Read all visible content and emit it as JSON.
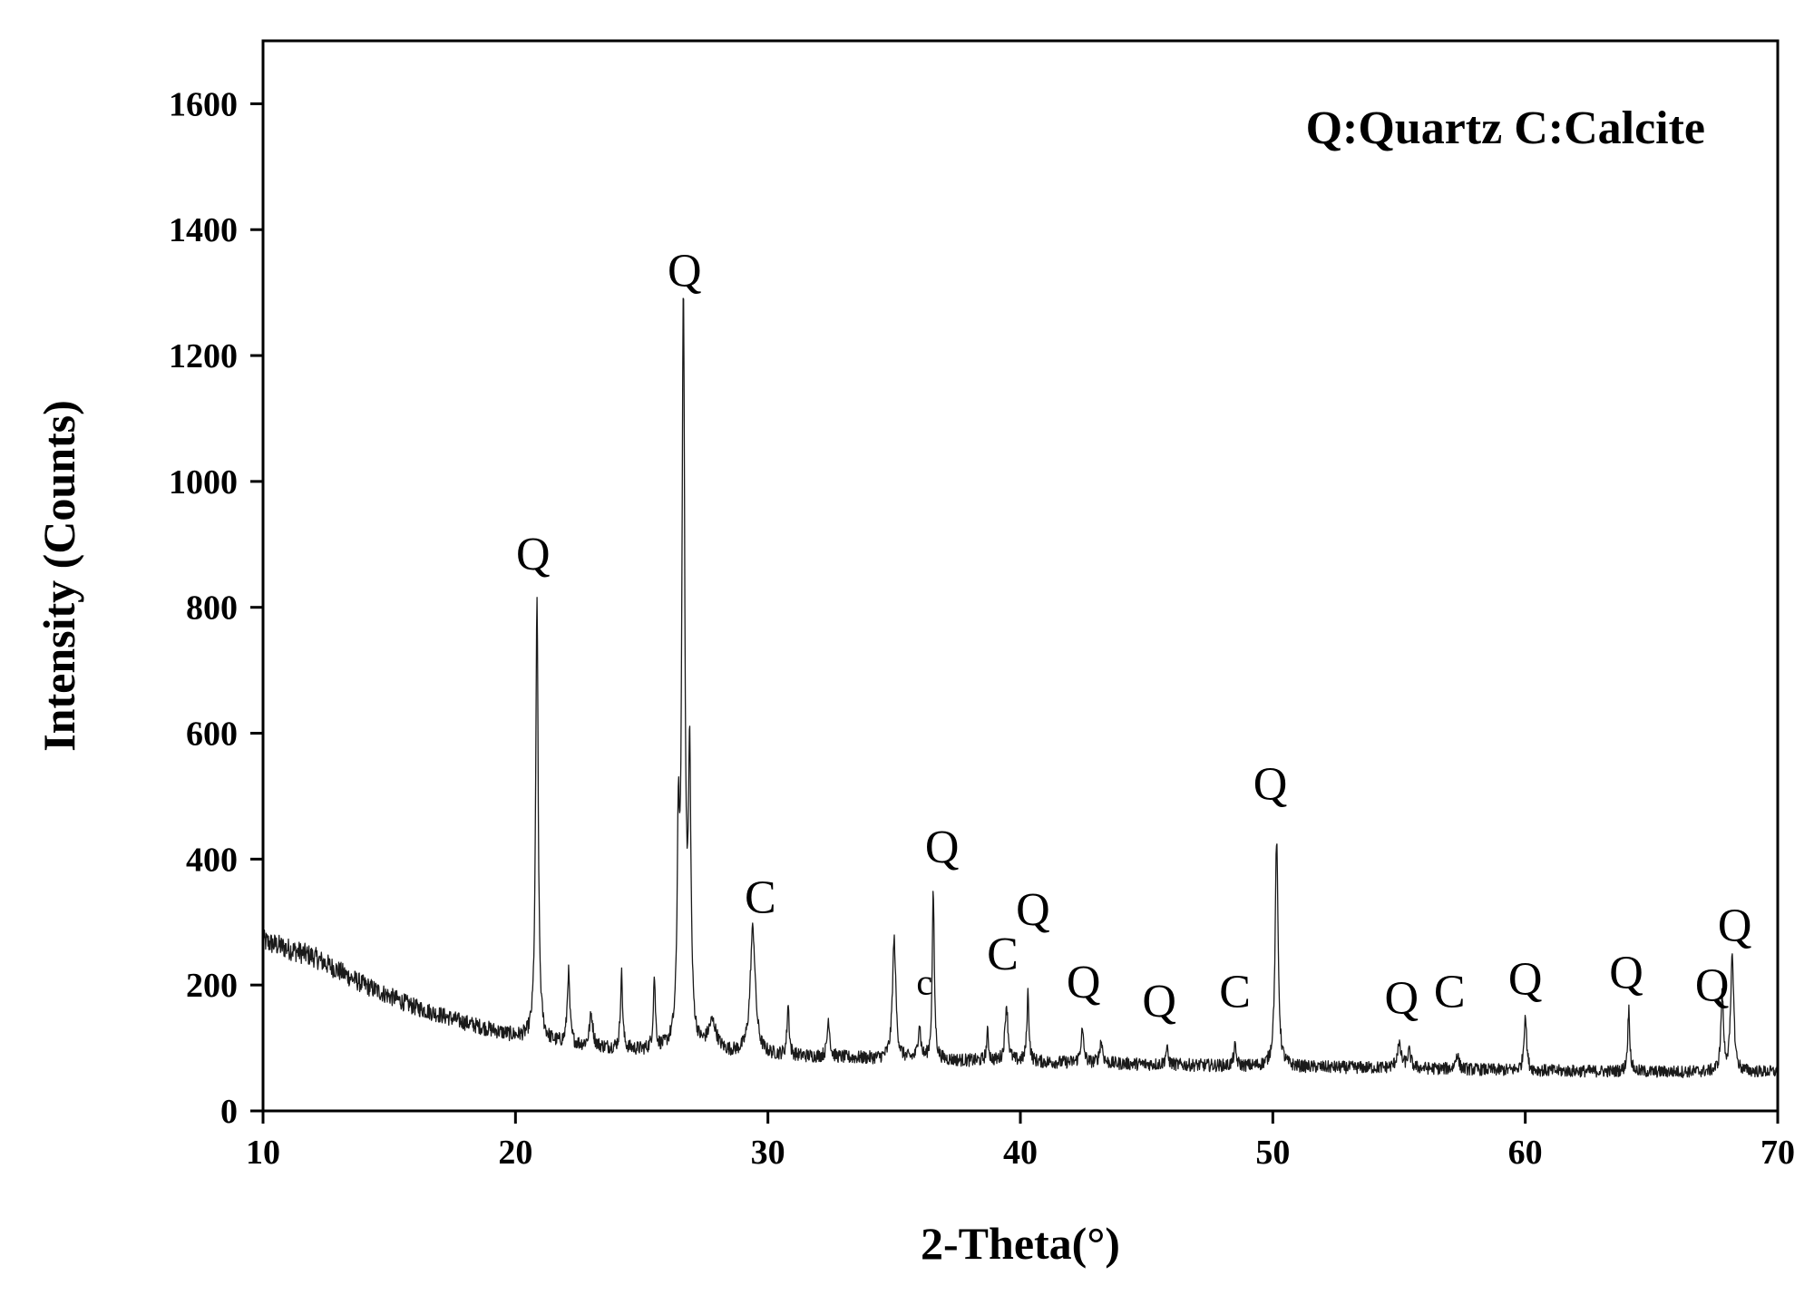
{
  "chart_data": {
    "type": "line",
    "title": "",
    "xlabel": "2-Theta(°)",
    "ylabel": "Intensity (Counts)",
    "xlim": [
      10,
      70
    ],
    "ylim": [
      0,
      1700
    ],
    "x_ticks": [
      10,
      20,
      30,
      40,
      50,
      60,
      70
    ],
    "y_ticks": [
      0,
      200,
      400,
      600,
      800,
      1000,
      1200,
      1400,
      1600
    ],
    "grid": false,
    "legend": {
      "text": "Q:Quartz C:Calcite",
      "placement": "top-right"
    },
    "line_color": "#1a1a1a",
    "background": [
      [
        10,
        270
      ],
      [
        12,
        245
      ],
      [
        14,
        200
      ],
      [
        16,
        165
      ],
      [
        18,
        140
      ],
      [
        20,
        118
      ],
      [
        22,
        105
      ],
      [
        25,
        95
      ],
      [
        30,
        88
      ],
      [
        35,
        82
      ],
      [
        40,
        78
      ],
      [
        45,
        74
      ],
      [
        50,
        70
      ],
      [
        55,
        68
      ],
      [
        60,
        64
      ],
      [
        65,
        62
      ],
      [
        70,
        62
      ]
    ],
    "peaks": [
      {
        "x": 20.85,
        "height": 695,
        "width": 0.06
      },
      {
        "x": 22.1,
        "height": 115,
        "width": 0.06
      },
      {
        "x": 23.0,
        "height": 50,
        "width": 0.08
      },
      {
        "x": 24.2,
        "height": 120,
        "width": 0.05
      },
      {
        "x": 25.5,
        "height": 115,
        "width": 0.05
      },
      {
        "x": 26.45,
        "height": 300,
        "width": 0.05
      },
      {
        "x": 26.65,
        "height": 1170,
        "width": 0.07
      },
      {
        "x": 26.9,
        "height": 430,
        "width": 0.06
      },
      {
        "x": 27.8,
        "height": 45,
        "width": 0.2
      },
      {
        "x": 29.4,
        "height": 200,
        "width": 0.12
      },
      {
        "x": 30.8,
        "height": 80,
        "width": 0.05
      },
      {
        "x": 32.4,
        "height": 60,
        "width": 0.06
      },
      {
        "x": 35.0,
        "height": 190,
        "width": 0.08
      },
      {
        "x": 36.0,
        "height": 55,
        "width": 0.06
      },
      {
        "x": 36.55,
        "height": 265,
        "width": 0.05
      },
      {
        "x": 38.7,
        "height": 45,
        "width": 0.05
      },
      {
        "x": 39.45,
        "height": 90,
        "width": 0.07
      },
      {
        "x": 40.3,
        "height": 110,
        "width": 0.05
      },
      {
        "x": 42.45,
        "height": 50,
        "width": 0.07
      },
      {
        "x": 43.2,
        "height": 35,
        "width": 0.07
      },
      {
        "x": 45.8,
        "height": 25,
        "width": 0.06
      },
      {
        "x": 48.5,
        "height": 30,
        "width": 0.06
      },
      {
        "x": 50.15,
        "height": 360,
        "width": 0.07
      },
      {
        "x": 55.0,
        "height": 35,
        "width": 0.1
      },
      {
        "x": 55.4,
        "height": 25,
        "width": 0.08
      },
      {
        "x": 57.3,
        "height": 25,
        "width": 0.07
      },
      {
        "x": 60.0,
        "height": 90,
        "width": 0.06
      },
      {
        "x": 64.1,
        "height": 100,
        "width": 0.05
      },
      {
        "x": 67.8,
        "height": 120,
        "width": 0.06
      },
      {
        "x": 68.2,
        "height": 185,
        "width": 0.07
      }
    ],
    "noise_amplitude": 12,
    "annotations": [
      {
        "text": "Q",
        "x": 20.7,
        "y": 860
      },
      {
        "text": "Q",
        "x": 26.7,
        "y": 1310
      },
      {
        "text": "C",
        "x": 29.7,
        "y": 315
      },
      {
        "text": "c",
        "x": 36.2,
        "y": 185,
        "small": true
      },
      {
        "text": "Q",
        "x": 36.9,
        "y": 395
      },
      {
        "text": "C",
        "x": 39.3,
        "y": 225
      },
      {
        "text": "Q",
        "x": 40.5,
        "y": 295
      },
      {
        "text": "Q",
        "x": 42.5,
        "y": 180
      },
      {
        "text": "Q",
        "x": 45.5,
        "y": 150
      },
      {
        "text": "C",
        "x": 48.5,
        "y": 165
      },
      {
        "text": "Q",
        "x": 49.9,
        "y": 495
      },
      {
        "text": "Q",
        "x": 55.1,
        "y": 155
      },
      {
        "text": "C",
        "x": 57.0,
        "y": 165
      },
      {
        "text": "Q",
        "x": 60.0,
        "y": 185
      },
      {
        "text": "Q",
        "x": 64.0,
        "y": 195
      },
      {
        "text": "Q",
        "x": 67.4,
        "y": 175
      },
      {
        "text": "Q",
        "x": 68.3,
        "y": 270
      }
    ]
  }
}
